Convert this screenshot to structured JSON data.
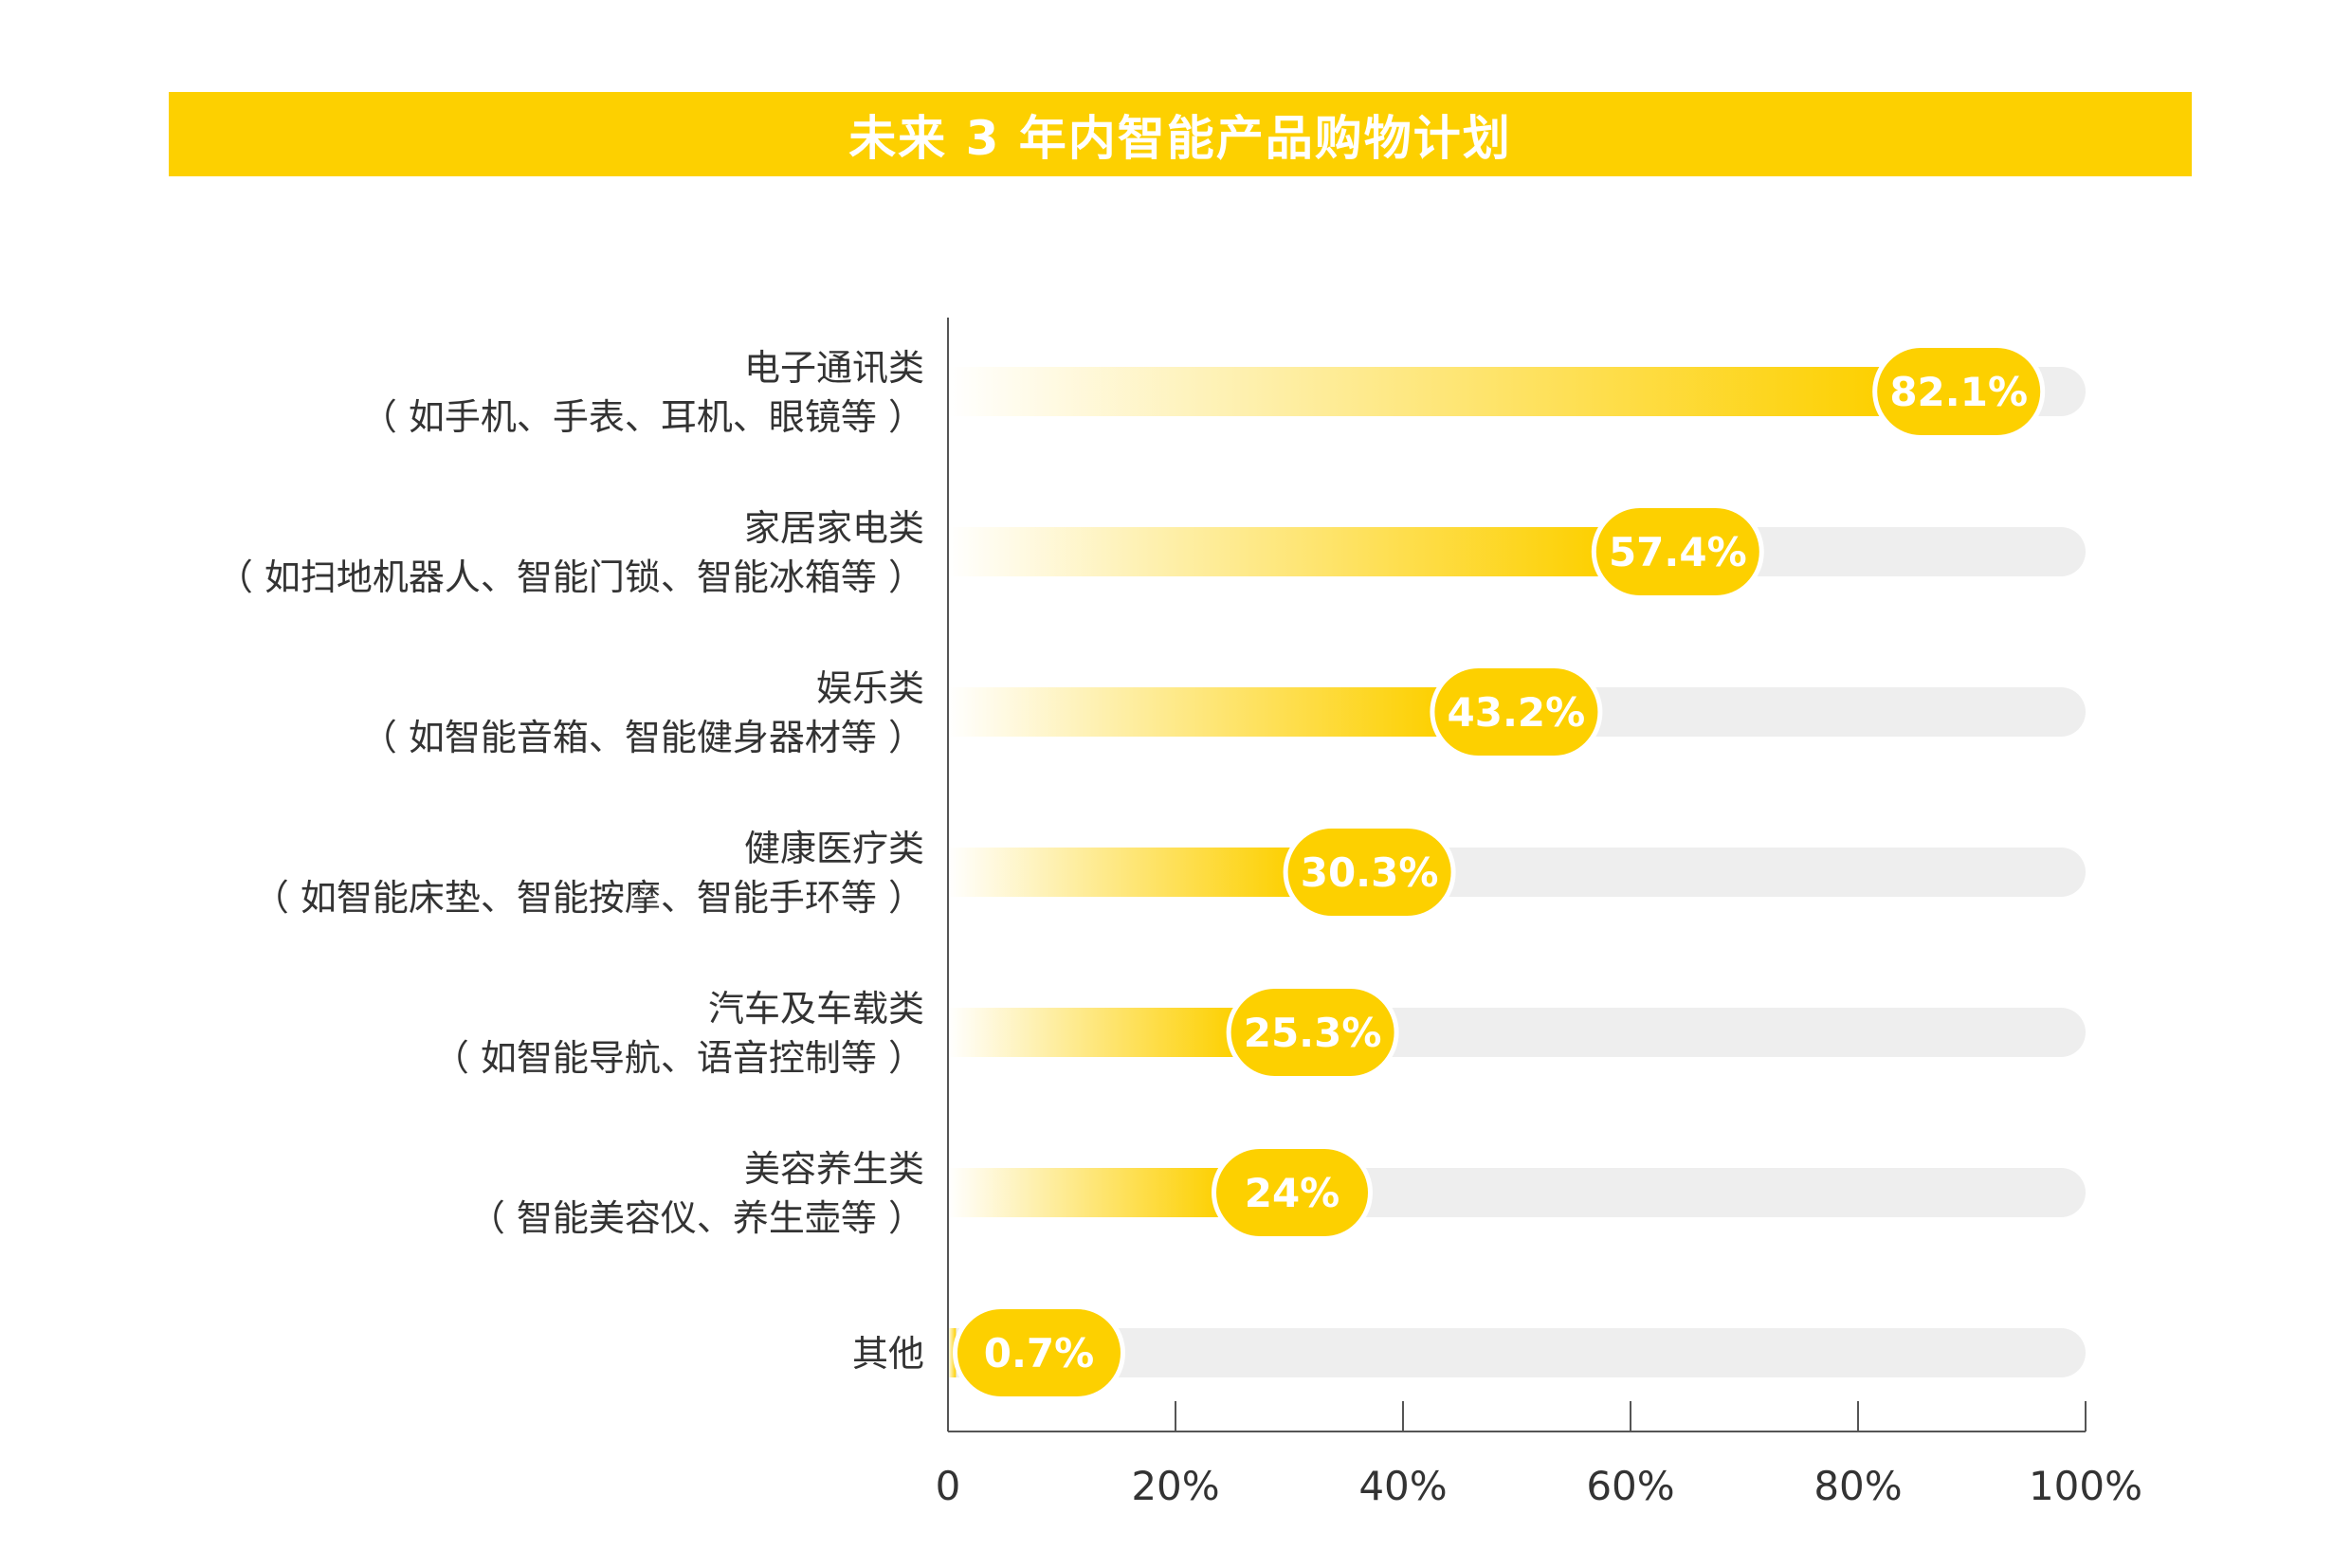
{
  "title": "未来 3 年内智能产品购物计划",
  "colors": {
    "banner": "#fdd000",
    "bar": "#fdd000",
    "badge": "#fdd000",
    "track": "#eeeeee",
    "axis": "#555555",
    "label_text": "#333333",
    "badge_text": "#ffffff"
  },
  "chart_data": {
    "type": "bar",
    "orientation": "horizontal",
    "categories": [
      {
        "name": "电子通讯类",
        "sub": "（ 如手机、手表、耳机、眼镜等 ）"
      },
      {
        "name": "家居家电类",
        "sub": "（ 如扫地机器人、智能门锁、智能冰箱等 ）"
      },
      {
        "name": "娱乐类",
        "sub": "（ 如智能音箱、智能健身器材等 ）"
      },
      {
        "name": "健康医疗类",
        "sub": "（ 如智能床垫、智能按摩、智能手环等 ）"
      },
      {
        "name": "汽车及车载类",
        "sub": "（ 如智能导航、语音控制等 ）"
      },
      {
        "name": "美容养生类",
        "sub": "（ 智能美容仪、养生壶等 ）"
      },
      {
        "name": "其他",
        "sub": ""
      }
    ],
    "values": [
      82.1,
      57.4,
      43.2,
      30.3,
      25.3,
      24,
      0.7
    ],
    "data_labels": [
      "82.1%",
      "57.4%",
      "43.2%",
      "30.3%",
      "25.3%",
      "24%",
      "0.7%"
    ],
    "xlim": [
      0,
      100
    ],
    "xticks": [
      0,
      20,
      40,
      60,
      80,
      100
    ],
    "xtick_labels": [
      "0",
      "20%",
      "40%",
      "60%",
      "80%",
      "100%"
    ],
    "grid": false,
    "legend": "none"
  }
}
